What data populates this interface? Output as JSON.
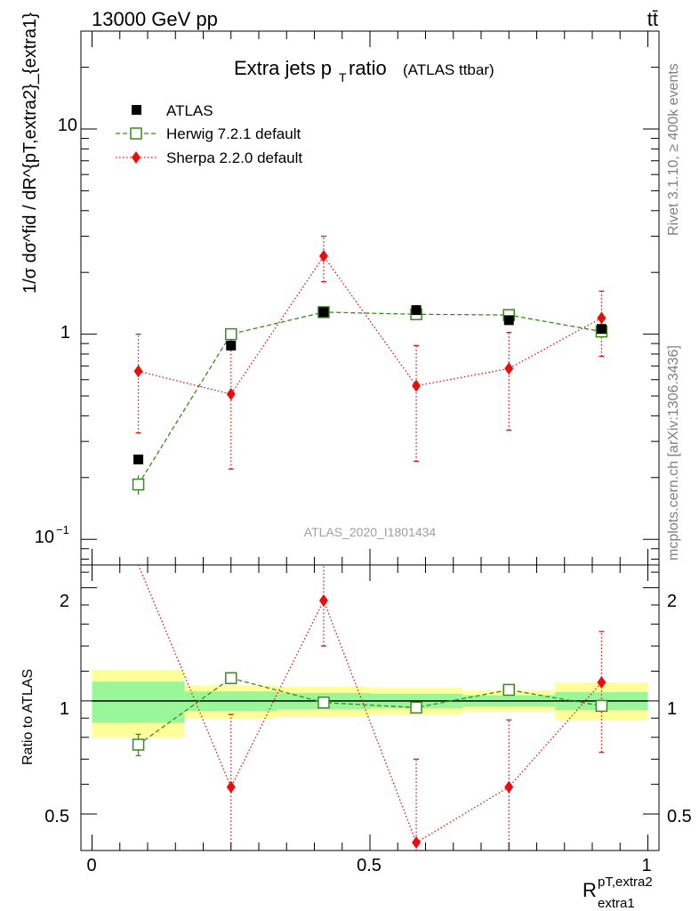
{
  "header": {
    "process": "13000 GeV pp",
    "channel": "tt̄",
    "title_main": "Extra jets p",
    "title_sub": "T",
    "title_rest": " ratio",
    "title_paren": "(ATLAS ttbar)",
    "watermark": "ATLAS_2020_I1801434",
    "side_rivet": "Rivet 3.1.10, ≥ 400k events",
    "side_mcplots": "mcplots.cern.ch [arXiv:1306.3436]"
  },
  "axes": {
    "ylabel_main": "1/σ dσ^fid / dR^{pT,extra2}_{extra1}",
    "ylabel_ratio": "Ratio to ATLAS",
    "xlabel_main": "R",
    "xlabel_sup": "pT,extra2",
    "xlabel_sub": "extra1",
    "x_ticks": [
      "0",
      "0.5",
      "1"
    ],
    "main_ticks": [
      "10",
      "1"
    ],
    "main_tick_low": "10",
    "main_tick_low_exp": "−1",
    "ratio_ticks": [
      "2",
      "1",
      "0.5"
    ]
  },
  "legend": [
    {
      "label": "ATLAS"
    },
    {
      "label": "Herwig 7.2.1 default"
    },
    {
      "label": "Sherpa 2.2.0 default"
    }
  ],
  "colors": {
    "data": "#000000",
    "herwig": "#3a8a1e",
    "sherpa": "#e8100e",
    "band_inner": "#99f799",
    "band_outer": "#ffff99"
  },
  "chart_data": {
    "type": "scatter",
    "xlim": [
      -0.02,
      1.02
    ],
    "ylim_main": [
      0.075,
      30
    ],
    "ylim_ratio": [
      0.4,
      2.3
    ],
    "log_y": true,
    "bins": [
      [
        0.0,
        0.1667
      ],
      [
        0.1667,
        0.3333
      ],
      [
        0.3333,
        0.5
      ],
      [
        0.5,
        0.6667
      ],
      [
        0.6667,
        0.8333
      ],
      [
        0.8333,
        1.0
      ]
    ],
    "x": [
      0.0833,
      0.25,
      0.4167,
      0.5833,
      0.75,
      0.9167
    ],
    "series": [
      {
        "name": "ATLAS",
        "values": [
          0.245,
          0.88,
          1.28,
          1.31,
          1.17,
          1.06
        ]
      },
      {
        "name": "Herwig 7.2.1 default",
        "values": [
          0.185,
          1.0,
          1.28,
          1.25,
          1.24,
          1.03
        ],
        "err": [
          0.02,
          0.03,
          0.03,
          0.03,
          0.03,
          0.03
        ]
      },
      {
        "name": "Sherpa 2.2.0 default",
        "values": [
          0.66,
          0.51,
          2.4,
          0.56,
          0.68,
          1.2
        ],
        "err_lo": [
          0.33,
          0.29,
          0.6,
          0.32,
          0.34,
          0.42
        ],
        "err_hi": [
          0.34,
          0.52,
          0.6,
          0.32,
          0.34,
          0.42
        ]
      }
    ],
    "ratio": {
      "band_inner": [
        [
          0.875,
          1.125
        ],
        [
          0.94,
          1.06
        ],
        [
          0.95,
          1.05
        ],
        [
          0.955,
          1.045
        ],
        [
          0.965,
          1.035
        ],
        [
          0.945,
          1.055
        ]
      ],
      "band_outer": [
        [
          0.8,
          1.21
        ],
        [
          0.9,
          1.1
        ],
        [
          0.91,
          1.09
        ],
        [
          0.92,
          1.085
        ],
        [
          0.935,
          1.065
        ],
        [
          0.89,
          1.12
        ]
      ],
      "herwig": [
        0.765,
        1.15,
        0.99,
        0.96,
        1.07,
        0.97
      ],
      "herwig_err": [
        0.05,
        0.03,
        0.03,
        0.02,
        0.02,
        0.03
      ],
      "sherpa": [
        2.7,
        0.59,
        1.85,
        0.42,
        0.59,
        1.12
      ],
      "sherpa_err_lo": [
        0.0,
        0.29,
        0.45,
        0.27,
        0.3,
        0.39
      ],
      "sherpa_err_hi": [
        0.0,
        0.33,
        0.45,
        0.28,
        0.3,
        0.41
      ]
    }
  }
}
